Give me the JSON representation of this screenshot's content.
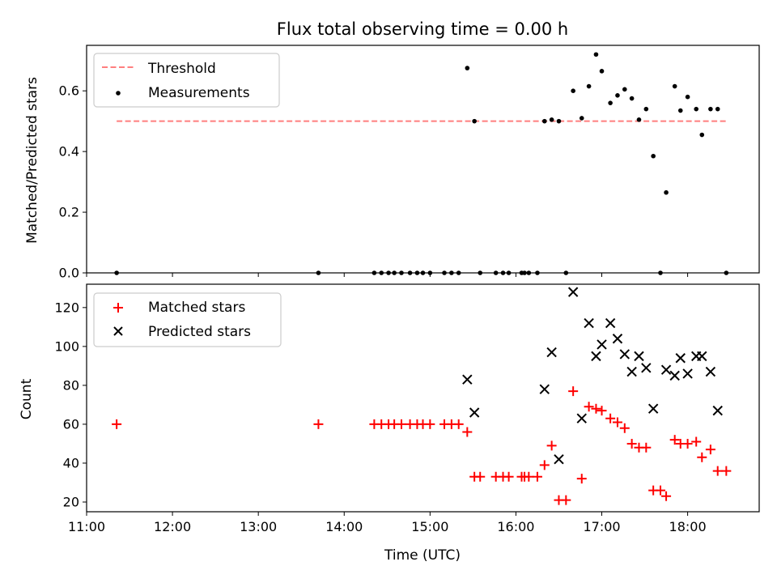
{
  "chart_data": [
    {
      "type": "scatter",
      "title": "Flux total observing time = 0.00 h",
      "ylabel": "Matched/Predicted stars",
      "xlabel": "",
      "xlim": [
        "11:00",
        "18:50"
      ],
      "ylim": [
        0,
        0.75
      ],
      "x_ticks": [],
      "y_ticks": [
        "0.0",
        "0.2",
        "0.4",
        "0.6"
      ],
      "legend_position": "upper left",
      "threshold": {
        "name": "Threshold",
        "value": 0.5,
        "x_range": [
          "11:21",
          "18:27"
        ],
        "color": "#ff7f7f",
        "style": "dashed"
      },
      "series": [
        {
          "name": "Measurements",
          "marker": "dot",
          "color": "#000000",
          "points": [
            [
              "11:21",
              0.0
            ],
            [
              "13:42",
              0.0
            ],
            [
              "14:21",
              0.0
            ],
            [
              "14:26",
              0.0
            ],
            [
              "14:31",
              0.0
            ],
            [
              "14:35",
              0.0
            ],
            [
              "14:40",
              0.0
            ],
            [
              "14:46",
              0.0
            ],
            [
              "14:51",
              0.0
            ],
            [
              "14:55",
              0.0
            ],
            [
              "15:00",
              0.0
            ],
            [
              "15:10",
              0.0
            ],
            [
              "15:15",
              0.0
            ],
            [
              "15:20",
              0.0
            ],
            [
              "15:26",
              0.675
            ],
            [
              "15:31",
              0.5
            ],
            [
              "15:35",
              0.0
            ],
            [
              "15:46",
              0.0
            ],
            [
              "15:51",
              0.0
            ],
            [
              "15:55",
              0.0
            ],
            [
              "16:04",
              0.0
            ],
            [
              "16:06",
              0.0
            ],
            [
              "16:09",
              0.0
            ],
            [
              "16:15",
              0.0
            ],
            [
              "16:20",
              0.5
            ],
            [
              "16:25",
              0.505
            ],
            [
              "16:30",
              0.5
            ],
            [
              "16:35",
              0.0
            ],
            [
              "16:40",
              0.6
            ],
            [
              "16:46",
              0.51
            ],
            [
              "16:51",
              0.615
            ],
            [
              "16:56",
              0.72
            ],
            [
              "17:00",
              0.665
            ],
            [
              "17:06",
              0.56
            ],
            [
              "17:11",
              0.585
            ],
            [
              "17:16",
              0.605
            ],
            [
              "17:21",
              0.575
            ],
            [
              "17:26",
              0.505
            ],
            [
              "17:31",
              0.54
            ],
            [
              "17:36",
              0.385
            ],
            [
              "17:41",
              0.0
            ],
            [
              "17:45",
              0.265
            ],
            [
              "17:51",
              0.615
            ],
            [
              "17:55",
              0.535
            ],
            [
              "18:00",
              0.58
            ],
            [
              "18:06",
              0.54
            ],
            [
              "18:10",
              0.455
            ],
            [
              "18:16",
              0.54
            ],
            [
              "18:21",
              0.54
            ],
            [
              "18:27",
              0.0
            ]
          ]
        }
      ]
    },
    {
      "type": "scatter",
      "title": "",
      "ylabel": "Count",
      "xlabel": "Time (UTC)",
      "xlim": [
        "11:00",
        "18:50"
      ],
      "ylim": [
        15,
        132
      ],
      "x_ticks": [
        "11:00",
        "12:00",
        "13:00",
        "14:00",
        "15:00",
        "16:00",
        "17:00",
        "18:00"
      ],
      "y_ticks": [
        "20",
        "40",
        "60",
        "80",
        "100",
        "120"
      ],
      "legend_position": "upper left",
      "series": [
        {
          "name": "Matched stars",
          "marker": "plus",
          "color": "#ff0000",
          "points": [
            [
              "11:21",
              60
            ],
            [
              "13:42",
              60
            ],
            [
              "14:21",
              60
            ],
            [
              "14:26",
              60
            ],
            [
              "14:31",
              60
            ],
            [
              "14:35",
              60
            ],
            [
              "14:40",
              60
            ],
            [
              "14:46",
              60
            ],
            [
              "14:51",
              60
            ],
            [
              "14:55",
              60
            ],
            [
              "15:00",
              60
            ],
            [
              "15:10",
              60
            ],
            [
              "15:15",
              60
            ],
            [
              "15:20",
              60
            ],
            [
              "15:26",
              56
            ],
            [
              "15:31",
              33
            ],
            [
              "15:35",
              33
            ],
            [
              "15:46",
              33
            ],
            [
              "15:51",
              33
            ],
            [
              "15:55",
              33
            ],
            [
              "16:04",
              33
            ],
            [
              "16:06",
              33
            ],
            [
              "16:09",
              33
            ],
            [
              "16:15",
              33
            ],
            [
              "16:20",
              39
            ],
            [
              "16:25",
              49
            ],
            [
              "16:30",
              21
            ],
            [
              "16:35",
              21
            ],
            [
              "16:40",
              77
            ],
            [
              "16:46",
              32
            ],
            [
              "16:51",
              69
            ],
            [
              "16:56",
              68
            ],
            [
              "17:00",
              67
            ],
            [
              "17:06",
              63
            ],
            [
              "17:11",
              61
            ],
            [
              "17:16",
              58
            ],
            [
              "17:21",
              50
            ],
            [
              "17:26",
              48
            ],
            [
              "17:31",
              48
            ],
            [
              "17:36",
              26
            ],
            [
              "17:41",
              26
            ],
            [
              "17:45",
              23
            ],
            [
              "17:51",
              52
            ],
            [
              "17:55",
              50
            ],
            [
              "18:00",
              50
            ],
            [
              "18:06",
              51
            ],
            [
              "18:10",
              43
            ],
            [
              "18:16",
              47
            ],
            [
              "18:21",
              36
            ],
            [
              "18:27",
              36
            ]
          ]
        },
        {
          "name": "Predicted stars",
          "marker": "x",
          "color": "#000000",
          "points": [
            [
              "15:26",
              83
            ],
            [
              "15:31",
              66
            ],
            [
              "16:20",
              78
            ],
            [
              "16:25",
              97
            ],
            [
              "16:30",
              42
            ],
            [
              "16:40",
              128
            ],
            [
              "16:46",
              63
            ],
            [
              "16:51",
              112
            ],
            [
              "16:56",
              95
            ],
            [
              "17:00",
              101
            ],
            [
              "17:06",
              112
            ],
            [
              "17:11",
              104
            ],
            [
              "17:16",
              96
            ],
            [
              "17:21",
              87
            ],
            [
              "17:26",
              95
            ],
            [
              "17:31",
              89
            ],
            [
              "17:36",
              68
            ],
            [
              "17:45",
              88
            ],
            [
              "17:51",
              85
            ],
            [
              "17:55",
              94
            ],
            [
              "18:00",
              86
            ],
            [
              "18:06",
              95
            ],
            [
              "18:10",
              95
            ],
            [
              "18:16",
              87
            ],
            [
              "18:21",
              67
            ]
          ]
        }
      ]
    }
  ]
}
